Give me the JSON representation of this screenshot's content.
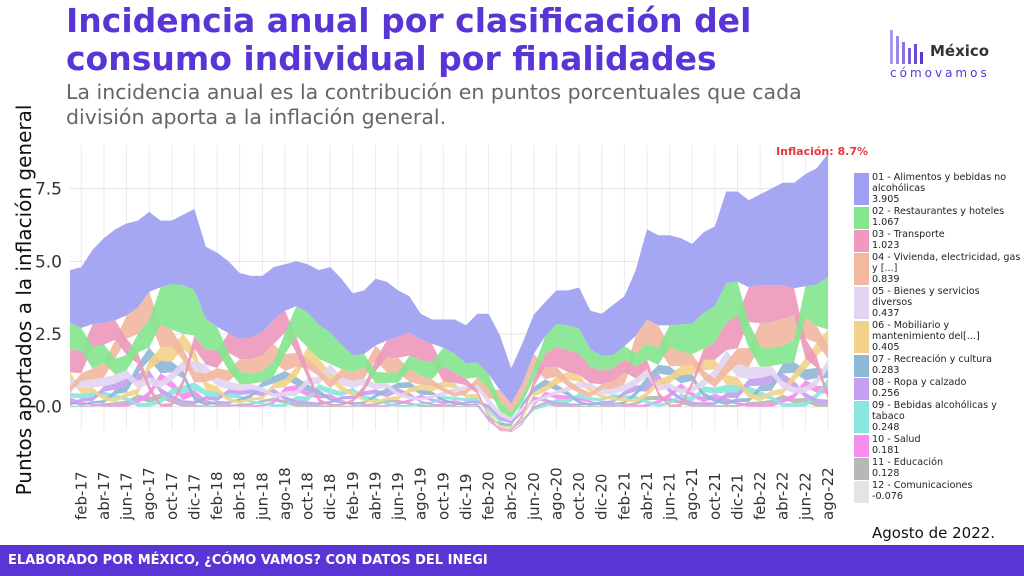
{
  "title": "Incidencia anual por clasificación del consumo individual por finalidades",
  "subtitle": "La incidencia anual es la contribución en puntos porcentuales que cada división aporta a la inflación general.",
  "logo": {
    "name": "México",
    "tagline": "cómovamos"
  },
  "caption": "Agosto de 2022.",
  "footer": "ELABORADO POR MÉXICO, ¿CÓMO VAMOS? CON DATOS DEL INEGI",
  "chart_data": {
    "type": "area",
    "style": "streamgraph",
    "ylabel": "Puntos aportados a la inflación general",
    "annotation": "Inflación: 8.7%",
    "ylim": [
      -0.8,
      9.0
    ],
    "yticks": [
      0.0,
      2.5,
      5.0,
      7.5
    ],
    "ytick_labels": [
      "0.0",
      "2.5",
      "5.0",
      "7.5"
    ],
    "grid": true,
    "legend_position": "right",
    "xtick_labels": [
      "feb-17",
      "abr-17",
      "jun-17",
      "ago-17",
      "oct-17",
      "dic-17",
      "feb-18",
      "abr-18",
      "jun-18",
      "ago-18",
      "oct-18",
      "dic-18",
      "feb-19",
      "abr-19",
      "jun-19",
      "ago-19",
      "oct-19",
      "dic-19",
      "feb-20",
      "abr-20",
      "jun-20",
      "ago-20",
      "oct-20",
      "dic-20",
      "feb-21",
      "abr-21",
      "jun-21",
      "ago-21",
      "oct-21",
      "dic-21",
      "feb-22",
      "abr-22",
      "jun-22",
      "ago-22"
    ],
    "x": [
      "ene-17",
      "feb-17",
      "mar-17",
      "abr-17",
      "may-17",
      "jun-17",
      "jul-17",
      "ago-17",
      "sep-17",
      "oct-17",
      "nov-17",
      "dic-17",
      "ene-18",
      "feb-18",
      "mar-18",
      "abr-18",
      "may-18",
      "jun-18",
      "jul-18",
      "ago-18",
      "sep-18",
      "oct-18",
      "nov-18",
      "dic-18",
      "ene-19",
      "feb-19",
      "mar-19",
      "abr-19",
      "may-19",
      "jun-19",
      "jul-19",
      "ago-19",
      "sep-19",
      "oct-19",
      "nov-19",
      "dic-19",
      "ene-20",
      "feb-20",
      "mar-20",
      "abr-20",
      "may-20",
      "jun-20",
      "jul-20",
      "ago-20",
      "sep-20",
      "oct-20",
      "nov-20",
      "dic-20",
      "ene-21",
      "feb-21",
      "mar-21",
      "abr-21",
      "may-21",
      "jun-21",
      "jul-21",
      "ago-21",
      "sep-21",
      "oct-21",
      "nov-21",
      "dic-21",
      "ene-22",
      "feb-22",
      "mar-22",
      "abr-22",
      "may-22",
      "jun-22",
      "jul-22",
      "ago-22"
    ],
    "total": [
      4.7,
      4.8,
      5.4,
      5.8,
      6.1,
      6.3,
      6.4,
      6.7,
      6.4,
      6.4,
      6.6,
      6.8,
      5.5,
      5.3,
      5.0,
      4.6,
      4.5,
      4.5,
      4.8,
      4.9,
      5.0,
      4.9,
      4.7,
      4.8,
      4.4,
      3.9,
      4.0,
      4.4,
      4.3,
      4.0,
      3.8,
      3.2,
      3.0,
      3.0,
      3.0,
      2.8,
      3.2,
      3.7,
      3.3,
      2.2,
      2.8,
      3.3,
      3.6,
      4.0,
      4.0,
      4.1,
      3.3,
      3.2,
      3.5,
      3.8,
      4.7,
      6.1,
      5.9,
      5.9,
      5.8,
      5.6,
      6.0,
      6.2,
      7.4,
      7.4,
      7.1,
      7.3,
      7.5,
      7.7,
      7.7,
      8.0,
      8.2,
      8.7
    ],
    "series": [
      {
        "name": "01 - Alimentos y bebidas no alcohólicas",
        "last": "3.905",
        "color": "#9da0f2"
      },
      {
        "name": "02 - Restaurantes y hoteles",
        "last": "1.067",
        "color": "#86e68f"
      },
      {
        "name": "03 - Transporte",
        "last": "1.023",
        "color": "#ee99bd"
      },
      {
        "name": "04 - Vivienda, electricidad, gas y [...]",
        "last": "0.839",
        "color": "#f2b8a2"
      },
      {
        "name": "05 - Bienes y servicios diversos",
        "last": "0.437",
        "color": "#e3d5f1"
      },
      {
        "name": "06 - Mobiliario y mantenimiento del[...]",
        "last": "0.405",
        "color": "#f2d28a"
      },
      {
        "name": "07 - Recreación y cultura",
        "last": "0.283",
        "color": "#8fb8d8"
      },
      {
        "name": "08 - Ropa y calzado",
        "last": "0.256",
        "color": "#c3a1ef"
      },
      {
        "name": "09 - Bebidas alcohólicas y tabaco",
        "last": "0.248",
        "color": "#8ae6dd"
      },
      {
        "name": "10 - Salud",
        "last": "0.181",
        "color": "#f68ef0"
      },
      {
        "name": "11 - Educación",
        "last": "0.128",
        "color": "#b7b7b7"
      },
      {
        "name": "12 - Comunicaciones",
        "last": "-0.076",
        "color": "#e4e4e4"
      }
    ]
  }
}
